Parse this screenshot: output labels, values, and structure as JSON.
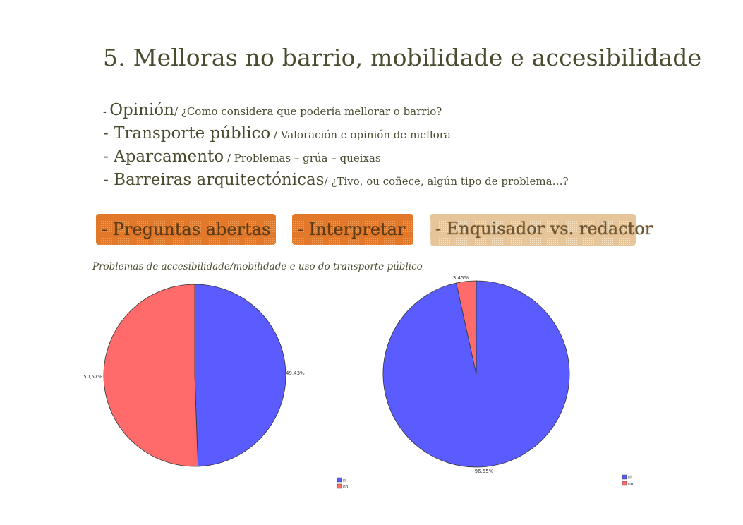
{
  "title": "5. Melloras no barrio, mobilidade e accesibilidade",
  "bullets": [
    {
      "prefix": "- ",
      "main": "Opinión",
      "detail": "/ ¿Como considera que podería mellorar o barrio?",
      "small_dash": true
    },
    {
      "prefix": "- ",
      "main": "Transporte público",
      "detail": " / Valoración e opinión de mellora",
      "small_dash": false
    },
    {
      "prefix": "- ",
      "main": "Aparcamento",
      "detail": " / Problemas – grúa – queixas",
      "small_dash": false
    },
    {
      "prefix": "- ",
      "main": "Barreiras arquitectónicas",
      "detail": "/ ¿Tivo, ou coñece, algún tipo de problema…?",
      "small_dash": false
    }
  ],
  "tags": [
    {
      "label": "- Preguntas abertas",
      "style": "orange"
    },
    {
      "label": "- Interpretar",
      "style": "orange"
    },
    {
      "label": "- Enquisador vs. redactor",
      "style": "tan"
    }
  ],
  "subtitle": "Problemas de accesibilidade/mobilidade e uso do transporte público",
  "colors": {
    "si": "#5a5cff",
    "no": "#ff6a6a"
  },
  "chart_data": [
    {
      "type": "pie",
      "labels": [
        "si",
        "no"
      ],
      "values": [
        49.43,
        50.57
      ],
      "data_labels": [
        "49,43%",
        "50,57%"
      ],
      "legend": [
        "si",
        "no"
      ],
      "legend_position": "bottom-right"
    },
    {
      "type": "pie",
      "labels": [
        "si",
        "no"
      ],
      "values": [
        96.55,
        3.45
      ],
      "data_labels": [
        "96,55%",
        "3,45%"
      ],
      "legend": [
        "si",
        "no"
      ],
      "legend_position": "bottom-right"
    }
  ]
}
